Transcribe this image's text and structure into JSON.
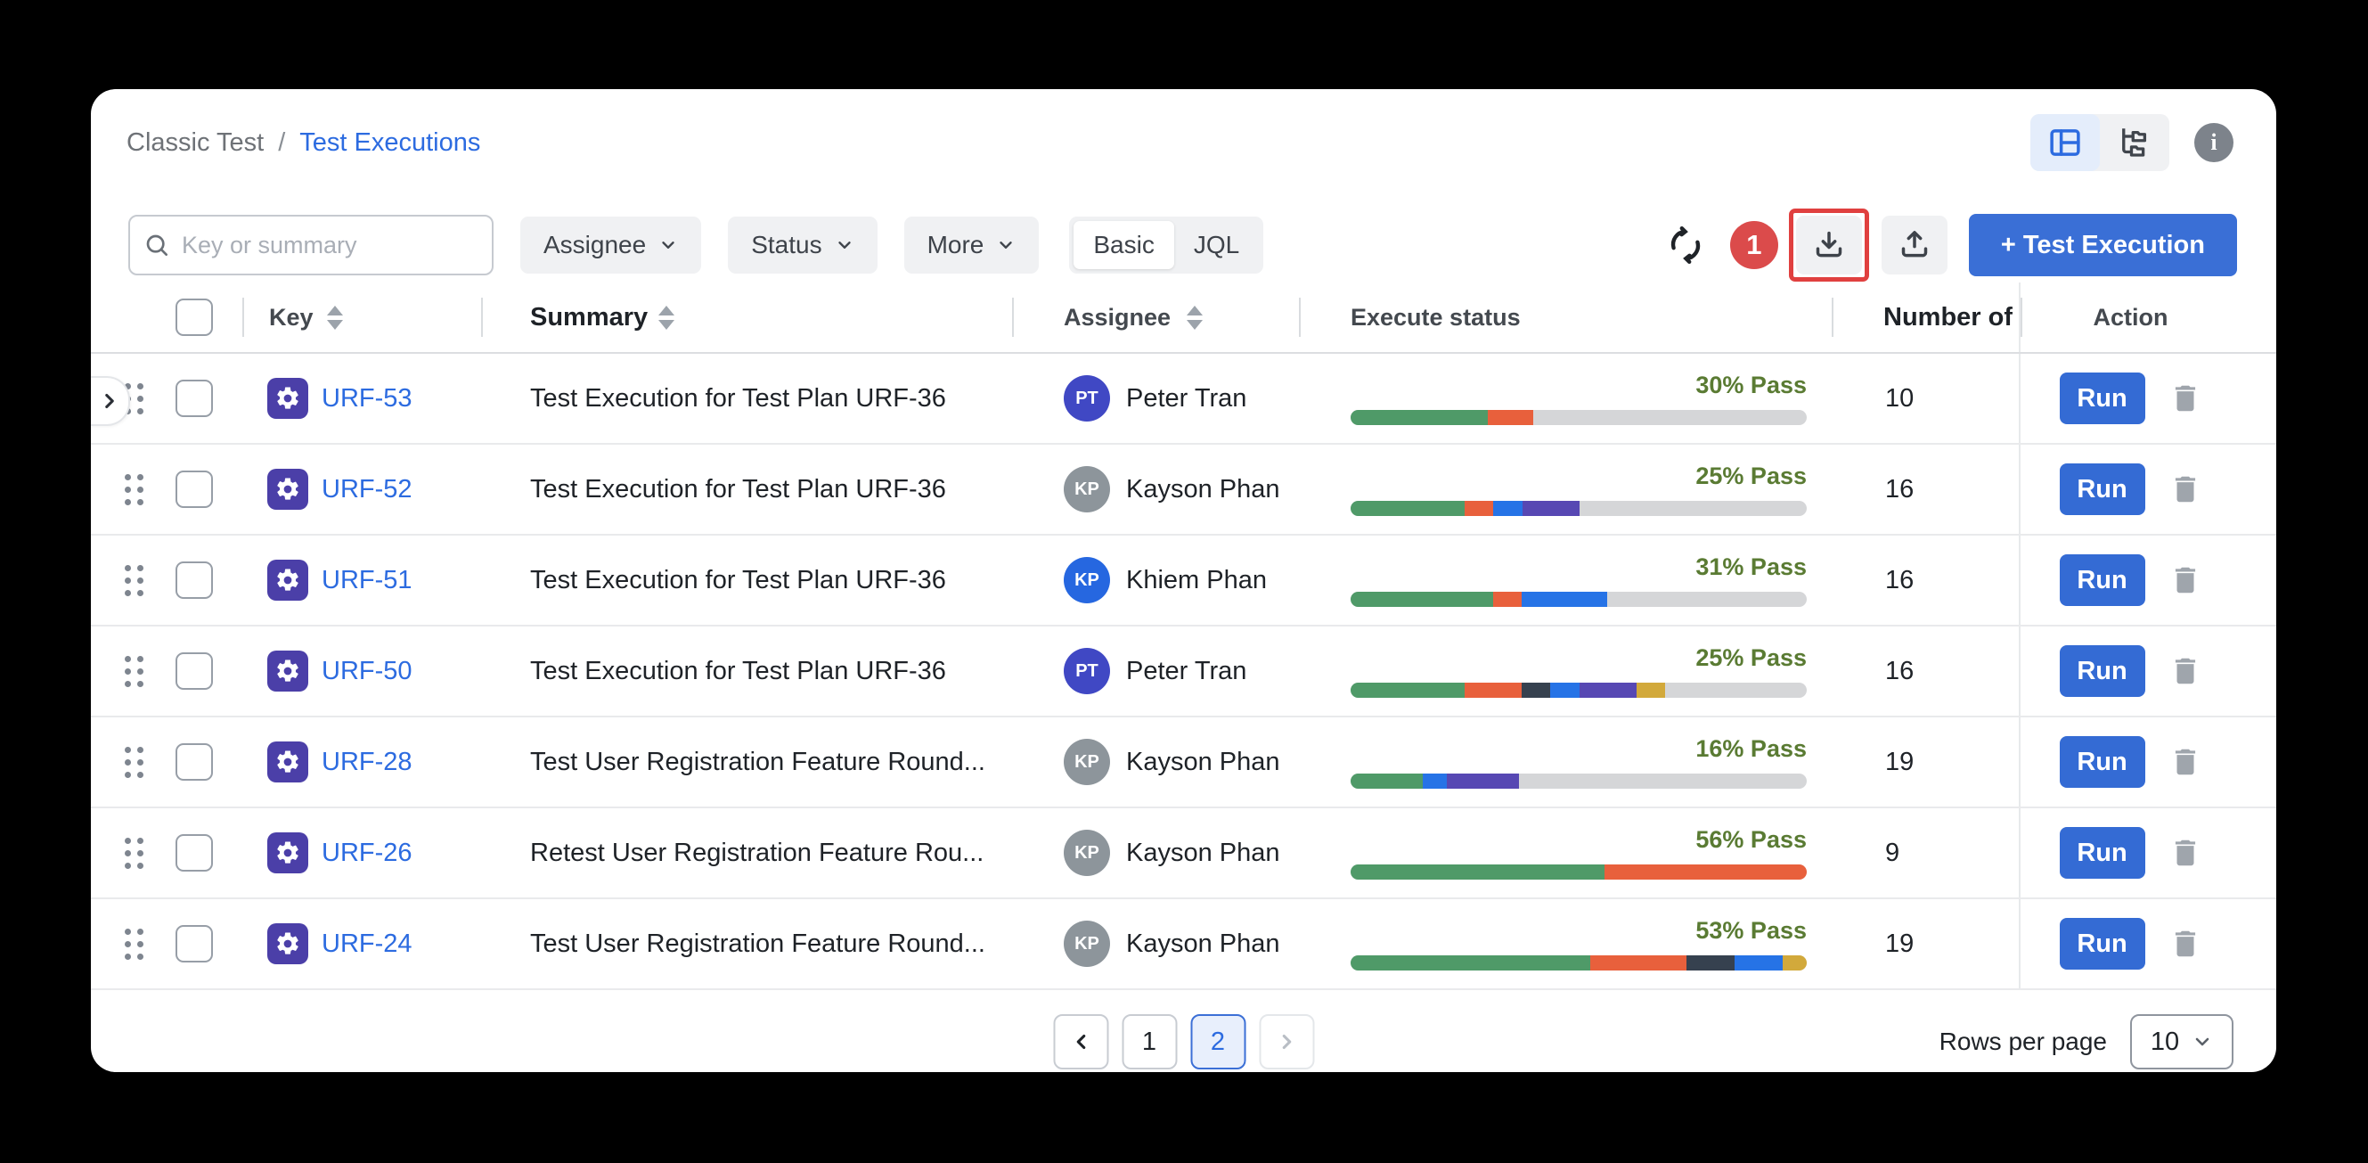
{
  "breadcrumb": {
    "parent": "Classic Test",
    "separator": "/",
    "current": "Test Executions"
  },
  "header_actions": {
    "view_toggle": {
      "active": "panel-view",
      "options": [
        "panel-view",
        "tree-view"
      ]
    },
    "info_glyph": "i"
  },
  "toolbar": {
    "search_placeholder": "Key or summary",
    "filters": [
      "Assignee",
      "Status",
      "More"
    ],
    "query_mode": {
      "options": [
        "Basic",
        "JQL"
      ],
      "selected": "Basic"
    },
    "annotation_badge": "1",
    "add_button_label": "+ Test Execution"
  },
  "icons": {
    "search": "magnifier",
    "refresh": "sync-arrows",
    "download": "tray-arrow-down",
    "upload": "tray-arrow-up",
    "info": "i-circle",
    "panel_view": "split-layout",
    "tree_view": "folder-tree",
    "trash": "trash-can",
    "drag": "six-dots",
    "sort": "up-down-triangles",
    "chevron": "chevron-down",
    "test_execution": "gear-badge"
  },
  "colors": {
    "accent_blue": "#3A6FD6",
    "link_blue": "#2C6BE0",
    "badge_red": "#DB4B4B",
    "highlight_red": "#E0403F",
    "key_icon_bg": "#4B3FA8",
    "pass_text": "#5A7B33"
  },
  "status_colors": {
    "passed": "#4F9A68",
    "failed": "#E8603C",
    "blocked": "#36414F",
    "executing": "#2673E6",
    "todo": "#5748B3",
    "pending": "#D2A93B",
    "track": "#D5D6D8"
  },
  "table": {
    "columns": [
      {
        "label": "Key",
        "sortable": true
      },
      {
        "label": "Summary",
        "sortable": true
      },
      {
        "label": "Assignee",
        "sortable": true
      },
      {
        "label": "Execute status",
        "sortable": false
      },
      {
        "label": "Number of",
        "sortable": false
      },
      {
        "label": "Action",
        "sortable": false
      }
    ],
    "run_label": "Run",
    "rows": [
      {
        "key": "URF-53",
        "summary": "Test Execution for Test Plan URF-36",
        "assignee": {
          "name": "Peter Tran",
          "initials": "PT",
          "color": "#4048C4"
        },
        "pass_label": "30% Pass",
        "segments": [
          [
            "passed",
            30
          ],
          [
            "failed",
            10
          ]
        ],
        "count": "10"
      },
      {
        "key": "URF-52",
        "summary": "Test Execution for Test Plan URF-36",
        "assignee": {
          "name": "Kayson Phan",
          "initials": "KP",
          "color": "#8D959B"
        },
        "pass_label": "25% Pass",
        "segments": [
          [
            "passed",
            25
          ],
          [
            "failed",
            6.3
          ],
          [
            "executing",
            6.3
          ],
          [
            "todo",
            12.5
          ]
        ],
        "count": "16"
      },
      {
        "key": "URF-51",
        "summary": "Test Execution for Test Plan URF-36",
        "assignee": {
          "name": "Khiem Phan",
          "initials": "KP",
          "color": "#2667E0"
        },
        "pass_label": "31% Pass",
        "segments": [
          [
            "passed",
            31.3
          ],
          [
            "failed",
            6.2
          ],
          [
            "executing",
            18.7
          ]
        ],
        "count": "16"
      },
      {
        "key": "URF-50",
        "summary": "Test Execution for Test Plan URF-36",
        "assignee": {
          "name": "Peter Tran",
          "initials": "PT",
          "color": "#4048C4"
        },
        "pass_label": "25% Pass",
        "segments": [
          [
            "passed",
            25
          ],
          [
            "failed",
            12.5
          ],
          [
            "blocked",
            6.3
          ],
          [
            "executing",
            6.3
          ],
          [
            "todo",
            12.5
          ],
          [
            "pending",
            6.3
          ]
        ],
        "count": "16"
      },
      {
        "key": "URF-28",
        "summary": "Test User Registration Feature Round...",
        "assignee": {
          "name": "Kayson Phan",
          "initials": "KP",
          "color": "#8D959B"
        },
        "pass_label": "16% Pass",
        "segments": [
          [
            "passed",
            15.8
          ],
          [
            "executing",
            5.3
          ],
          [
            "todo",
            15.8
          ]
        ],
        "count": "19"
      },
      {
        "key": "URF-26",
        "summary": "Retest User Registration Feature Rou...",
        "assignee": {
          "name": "Kayson Phan",
          "initials": "KP",
          "color": "#8D959B"
        },
        "pass_label": "56% Pass",
        "segments": [
          [
            "passed",
            55.6
          ],
          [
            "failed",
            44.4
          ]
        ],
        "count": "9"
      },
      {
        "key": "URF-24",
        "summary": "Test User Registration Feature Round...",
        "assignee": {
          "name": "Kayson Phan",
          "initials": "KP",
          "color": "#8D959B"
        },
        "pass_label": "53% Pass",
        "segments": [
          [
            "passed",
            52.6
          ],
          [
            "failed",
            21.1
          ],
          [
            "blocked",
            10.5
          ],
          [
            "executing",
            10.5
          ],
          [
            "pending",
            5.3
          ]
        ],
        "count": "19"
      }
    ]
  },
  "pagination": {
    "pages": [
      "1",
      "2"
    ],
    "current": "2",
    "prev_enabled": true,
    "next_enabled": false
  },
  "rows_per_page": {
    "label": "Rows per page",
    "value": "10"
  }
}
